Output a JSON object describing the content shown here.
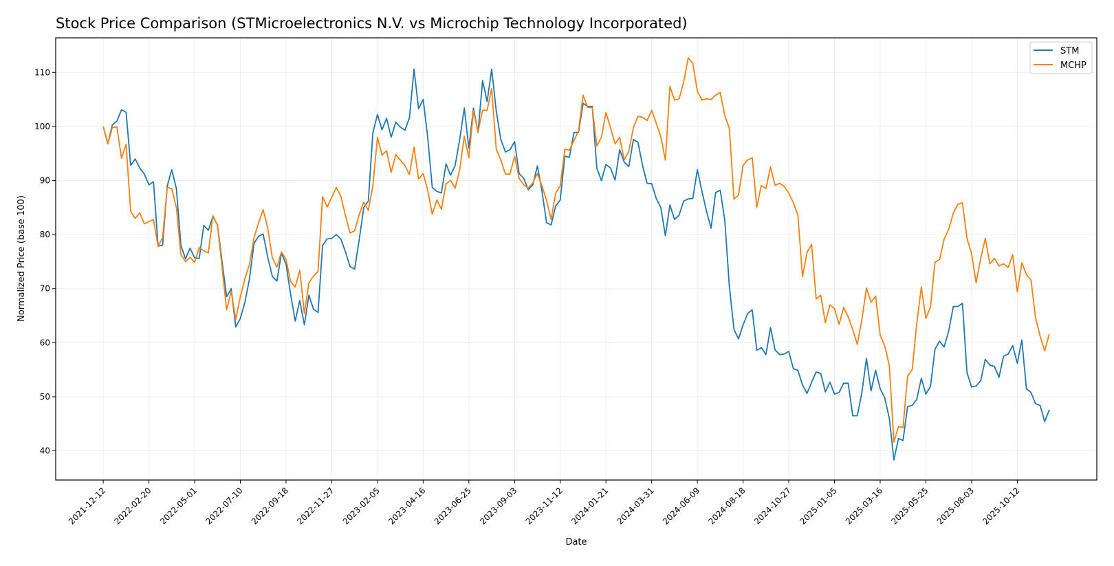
{
  "chart_data": {
    "type": "line",
    "title": "Stock Price Comparison (STMicroelectronics N.V. vs Microchip Technology Incorporated)",
    "xlabel": "Date",
    "ylabel": "Normalized Price (base 100)",
    "x_start": "2021-12-12",
    "x_step": "weekly",
    "xlim_weeks": [
      -10.4,
      217.4
    ],
    "ylim": [
      34.6,
      116.4
    ],
    "yticks": [
      40,
      50,
      60,
      70,
      80,
      90,
      100,
      110
    ],
    "xticks": [
      {
        "week": 0,
        "label": "2021-12-12"
      },
      {
        "week": 10,
        "label": "2022-02-20"
      },
      {
        "week": 20,
        "label": "2022-05-01"
      },
      {
        "week": 30,
        "label": "2022-07-10"
      },
      {
        "week": 40,
        "label": "2022-09-18"
      },
      {
        "week": 50,
        "label": "2022-11-27"
      },
      {
        "week": 60,
        "label": "2023-02-05"
      },
      {
        "week": 70,
        "label": "2023-04-16"
      },
      {
        "week": 80,
        "label": "2023-06-25"
      },
      {
        "week": 90,
        "label": "2023-09-03"
      },
      {
        "week": 100,
        "label": "2023-11-12"
      },
      {
        "week": 110,
        "label": "2024-01-21"
      },
      {
        "week": 120,
        "label": "2024-03-31"
      },
      {
        "week": 130,
        "label": "2024-06-09"
      },
      {
        "week": 140,
        "label": "2024-08-18"
      },
      {
        "week": 150,
        "label": "2024-10-27"
      },
      {
        "week": 160,
        "label": "2025-01-05"
      },
      {
        "week": 170,
        "label": "2025-03-16"
      },
      {
        "week": 180,
        "label": "2025-05-25"
      },
      {
        "week": 190,
        "label": "2025-08-03"
      },
      {
        "week": 200,
        "label": "2025-10-12"
      }
    ],
    "grid": true,
    "legend_position": "top-right",
    "series": [
      {
        "name": "STM",
        "color": "#1f77b4",
        "values": [
          100,
          96.8,
          100.3,
          101,
          103.1,
          102.6,
          92.8,
          94,
          92.3,
          91.2,
          89.2,
          89.8,
          77.9,
          78,
          89,
          92,
          88.5,
          78,
          75.5,
          77.5,
          75.7,
          75.6,
          81.7,
          80.8,
          83.3,
          81.8,
          75,
          68.5,
          70,
          62.9,
          64.5,
          67.5,
          71.8,
          78.4,
          79.7,
          80.1,
          75.8,
          72.3,
          71.4,
          76.6,
          74.5,
          69,
          64,
          67.8,
          63.3,
          68.8,
          66.2,
          65.6,
          78,
          79.2,
          79.3,
          80,
          79.2,
          76.8,
          74.1,
          73.6,
          79,
          85,
          86.2,
          98.8,
          102.2,
          99.4,
          101.5,
          98,
          100.8,
          99.9,
          99.3,
          101.6,
          110.6,
          103.3,
          105,
          98,
          88.7,
          88,
          87.7,
          93.1,
          91,
          92.8,
          97.6,
          103.4,
          96,
          103.4,
          98.9,
          108.5,
          104.6,
          110.6,
          102.8,
          97.6,
          95.3,
          95.7,
          97.2,
          91.3,
          90.4,
          88.3,
          89.2,
          92.7,
          88,
          82.2,
          81.8,
          85.3,
          86.4,
          94.5,
          94.3,
          98.9,
          98.9,
          104.3,
          103.7,
          103.7,
          92.3,
          90,
          93,
          92.3,
          90.1,
          95.7,
          93.4,
          92.6,
          97.6,
          97.1,
          92.8,
          89.5,
          89.4,
          86.7,
          85,
          79.8,
          85.5,
          82.8,
          83.6,
          86.2,
          86.6,
          86.7,
          92,
          88,
          84.3,
          81.2,
          87.8,
          88.2,
          82.7,
          70.5,
          62.5,
          60.7,
          63.3,
          65.4,
          66.1,
          58.6,
          59.1,
          57.8,
          62.8,
          58.7,
          57.8,
          57.9,
          58.4,
          55.2,
          54.9,
          52.2,
          50.6,
          52.7,
          54.6,
          54.3,
          50.9,
          52.7,
          50.5,
          50.8,
          52.5,
          52.5,
          46.5,
          46.5,
          50.8,
          57.1,
          51.1,
          54.9,
          51.5,
          49.8,
          46,
          38.3,
          42.3,
          41.9,
          48.2,
          48.4,
          49.5,
          53.4,
          50.5,
          51.9,
          58.8,
          60.3,
          59.2,
          62.2,
          66.7,
          66.7,
          67.3,
          54.5,
          51.8,
          52,
          53,
          56.9,
          55.9,
          55.6,
          53.6,
          57.5,
          57.9,
          59.5,
          56.2,
          60.5,
          51.5,
          50.8,
          48.7,
          48.4,
          45.4,
          47.6
        ]
      },
      {
        "name": "MCHP",
        "color": "#ff7f0e",
        "values": [
          100,
          96.8,
          99.8,
          99.9,
          94.1,
          96.7,
          84.3,
          83,
          84,
          82,
          82.4,
          82.8,
          77.8,
          79.5,
          88.7,
          88.5,
          85,
          76.3,
          75,
          75.8,
          74.9,
          77.6,
          77,
          76.6,
          83.5,
          81.7,
          74,
          66.1,
          69.5,
          64.3,
          68.5,
          71.9,
          74.5,
          79.4,
          82.2,
          84.6,
          81.2,
          75.7,
          74,
          76.8,
          75.4,
          71.3,
          70.3,
          73.4,
          65.4,
          71.1,
          72.3,
          73.2,
          87,
          85.1,
          86.9,
          88.7,
          87.1,
          83.5,
          80.3,
          80.7,
          83.7,
          86,
          84.5,
          89,
          98,
          94.7,
          95.5,
          91.5,
          94.8,
          93.8,
          92.8,
          91.1,
          96.2,
          90.3,
          91.3,
          88.2,
          83.8,
          86.4,
          84.7,
          89.4,
          90,
          88.6,
          92,
          98.2,
          94.2,
          102.9,
          99,
          103,
          103,
          107,
          95.8,
          93.8,
          91.2,
          91.2,
          94.5,
          90.4,
          89.2,
          88.6,
          89.6,
          91.3,
          89,
          86.3,
          82.8,
          87.7,
          89,
          95.8,
          95.6,
          97.4,
          99.2,
          105.8,
          103.5,
          103.5,
          96.4,
          98,
          102.6,
          99.8,
          96.8,
          98,
          93.8,
          95.4,
          99.8,
          101.9,
          101.7,
          101.1,
          103,
          100.6,
          98.1,
          93.8,
          107.4,
          104.9,
          105.1,
          108.2,
          112.7,
          111.7,
          106.5,
          104.9,
          105.1,
          105,
          105.8,
          106.3,
          102,
          99.7,
          86.6,
          87.3,
          92.8,
          93.8,
          94.2,
          85.1,
          89.1,
          88.5,
          92.5,
          89.1,
          89.5,
          88.9,
          87.7,
          85.9,
          83.6,
          72.2,
          76.7,
          78.2,
          68.1,
          68.8,
          63.7,
          67,
          66.3,
          63.4,
          66.5,
          64.8,
          62.4,
          59.7,
          64.3,
          70.1,
          67.5,
          68.6,
          61.4,
          59.4,
          55.8,
          41.6,
          44.5,
          44.3,
          53.8,
          55,
          63.5,
          70.3,
          64.5,
          66.6,
          74.9,
          75.4,
          79.2,
          81,
          84,
          85.6,
          85.9,
          79.3,
          76.5,
          71.1,
          75.6,
          79.3,
          74.6,
          75.6,
          74.2,
          74.6,
          73.9,
          76.3,
          69.4,
          74.8,
          72.6,
          71.6,
          64.6,
          61.2,
          58.5,
          61.6
        ]
      }
    ]
  }
}
